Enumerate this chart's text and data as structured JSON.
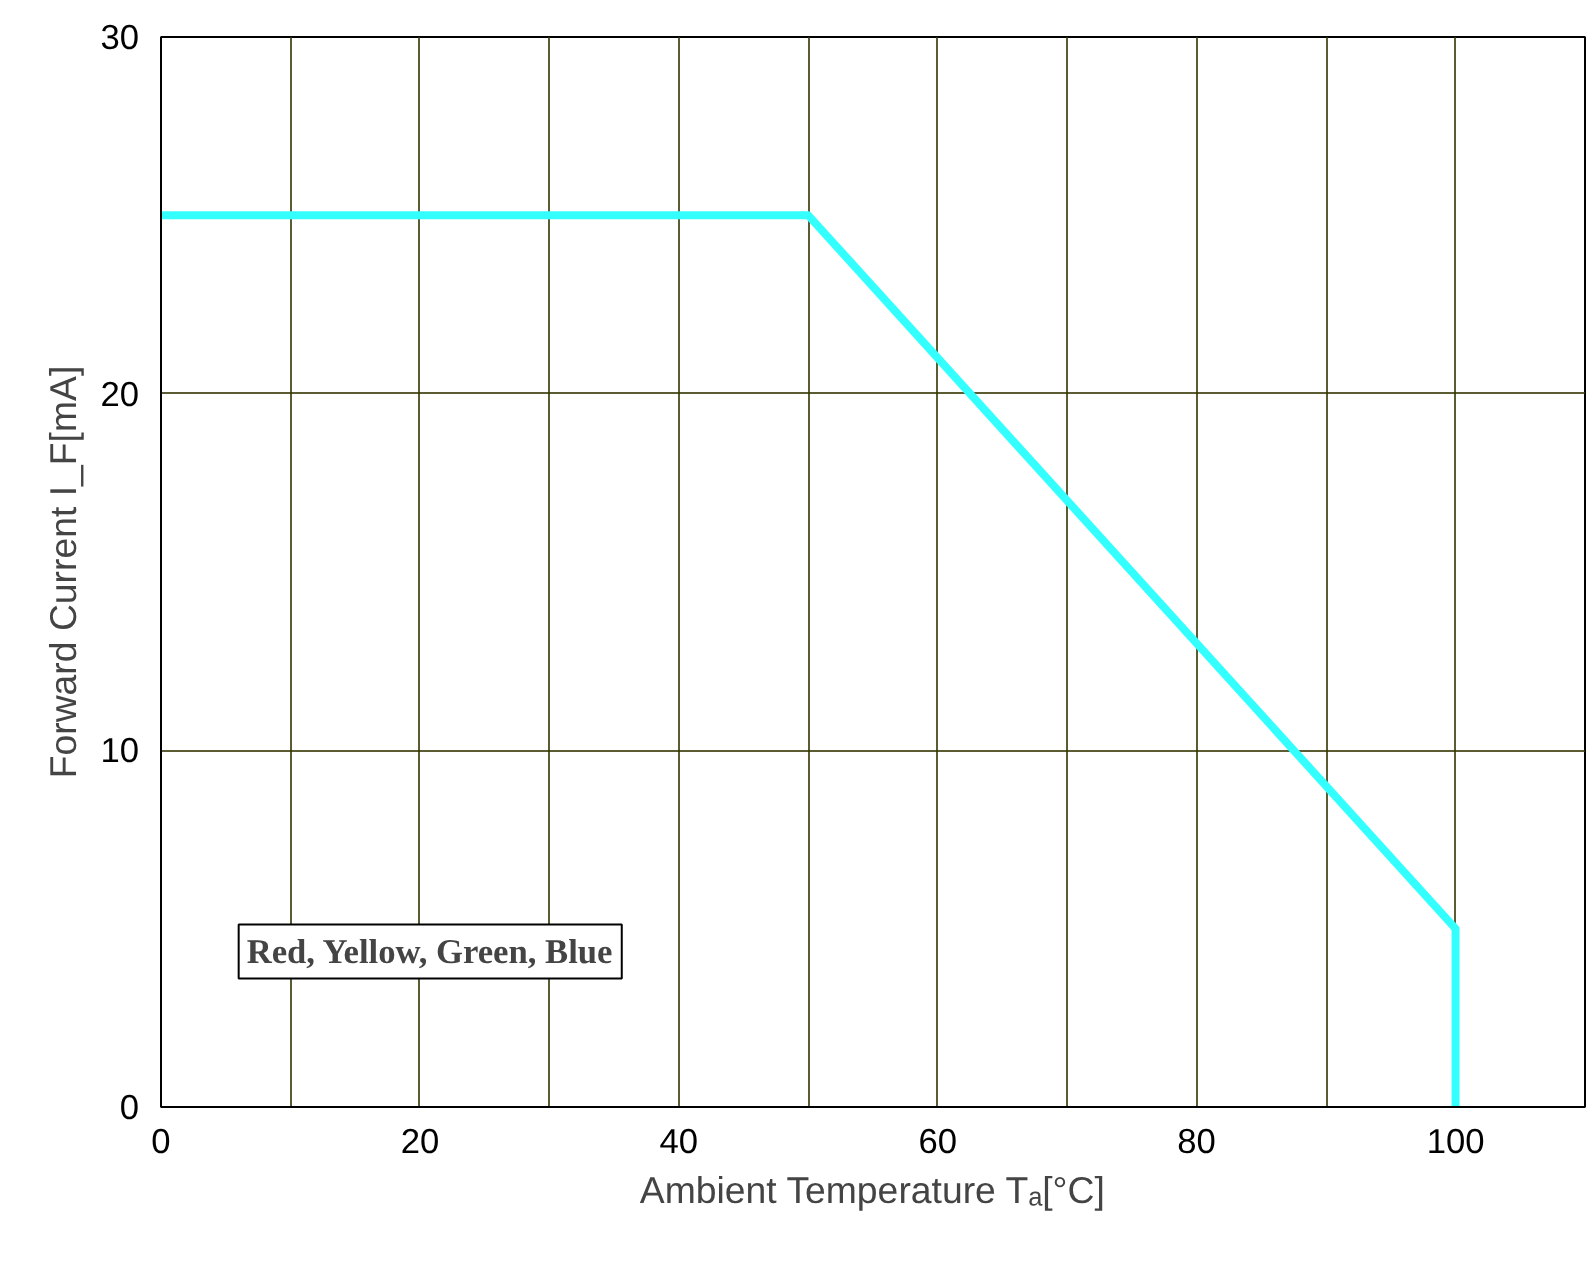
{
  "chart_data": {
    "type": "line",
    "x": [
      0,
      50,
      100,
      100
    ],
    "series": [
      {
        "color": "#33ffff",
        "values": [
          25,
          25,
          5,
          0
        ]
      }
    ],
    "xlabel": "Ambient Temperature Tₐ[°C]",
    "ylabel": "Forward Current I_F[mA]",
    "xlim": [
      0,
      110
    ],
    "ylim": [
      0,
      30
    ],
    "xticks": [
      0,
      {
        "value": 10,
        "label": null
      },
      20,
      {
        "value": 30,
        "label": null
      },
      40,
      {
        "value": 50,
        "label": null
      },
      60,
      {
        "value": 70,
        "label": null
      },
      80,
      {
        "value": 90,
        "label": null
      },
      100
    ],
    "yticks": [
      0,
      10,
      20,
      30
    ],
    "grid": true,
    "line_style": "solid",
    "marker": "none",
    "annotations": [
      {
        "text": "Red, Yellow, Green, Blue"
      }
    ]
  }
}
